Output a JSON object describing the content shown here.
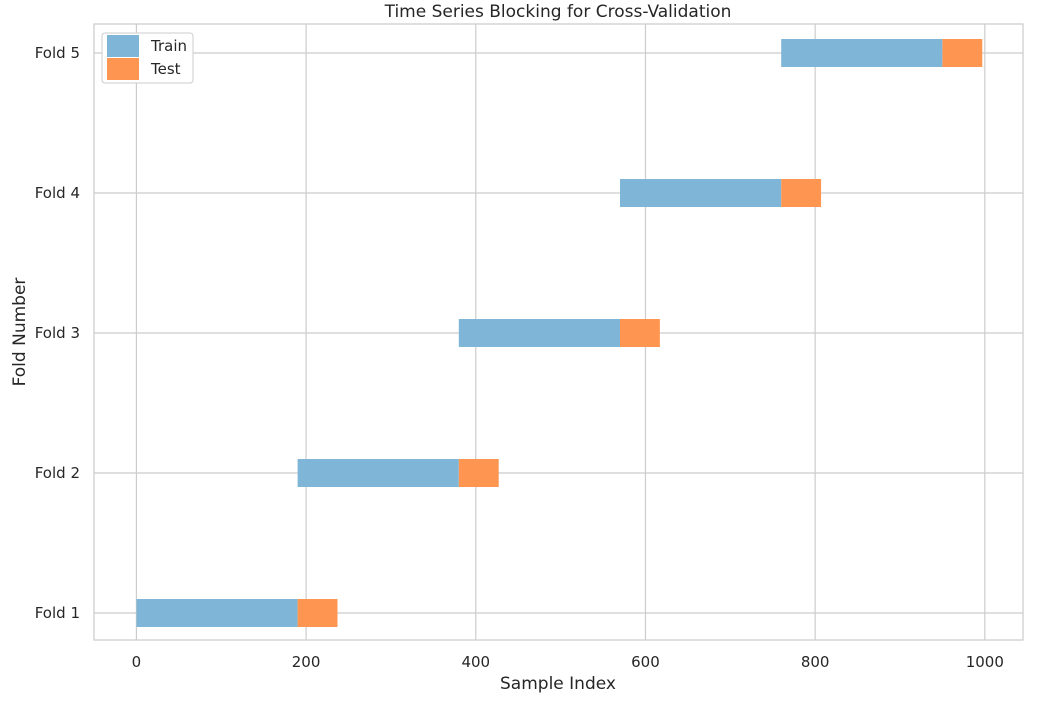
{
  "chart_data": {
    "type": "bar",
    "orientation": "horizontal-ranges",
    "title": "Time Series Blocking for Cross-Validation",
    "xlabel": "Sample Index",
    "ylabel": "Fold Number",
    "xlim": [
      -50,
      1045
    ],
    "xticks": [
      0,
      200,
      400,
      600,
      800,
      1000
    ],
    "xtick_labels": [
      "0",
      "200",
      "400",
      "600",
      "800",
      "1000"
    ],
    "categories": [
      "Fold 1",
      "Fold 2",
      "Fold 3",
      "Fold 4",
      "Fold 5"
    ],
    "grid": true,
    "legend_position": "top-left",
    "series": [
      {
        "name": "Train",
        "color": "#7fb5d6",
        "ranges": [
          [
            0,
            190
          ],
          [
            190,
            380
          ],
          [
            380,
            570
          ],
          [
            570,
            760
          ],
          [
            760,
            950
          ]
        ]
      },
      {
        "name": "Test",
        "color": "#fe9651",
        "ranges": [
          [
            190,
            237
          ],
          [
            380,
            427
          ],
          [
            570,
            617
          ],
          [
            760,
            807
          ],
          [
            950,
            997
          ]
        ]
      }
    ]
  }
}
